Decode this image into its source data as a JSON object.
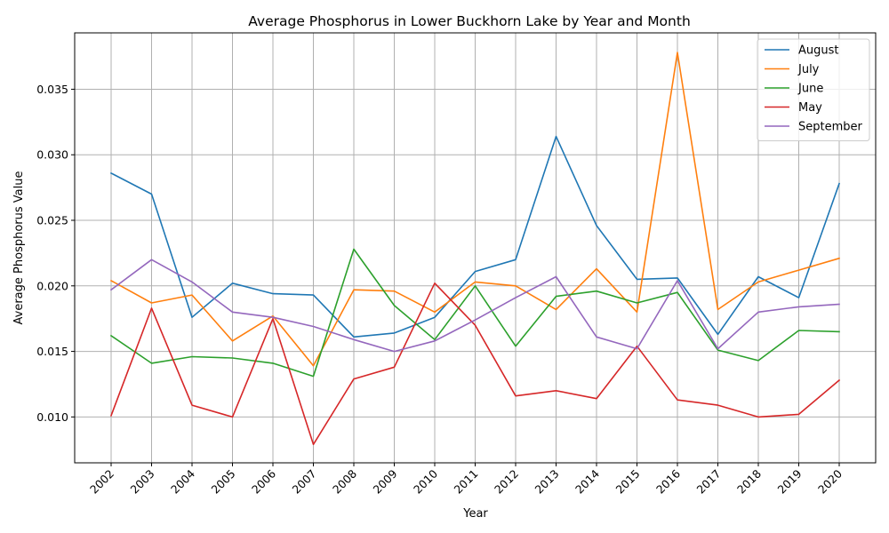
{
  "chart_data": {
    "type": "line",
    "title": "Average Phosphorus in Lower Buckhorn Lake by Year and Month",
    "xlabel": "Year",
    "ylabel": "Average Phosphorus Value",
    "x": [
      "2002",
      "2003",
      "2004",
      "2005",
      "2006",
      "2007",
      "2008",
      "2009",
      "2010",
      "2011",
      "2012",
      "2013",
      "2014",
      "2015",
      "2016",
      "2017",
      "2018",
      "2019",
      "2020"
    ],
    "ylim": [
      0.0065,
      0.0393
    ],
    "yticks": [
      0.01,
      0.015,
      0.02,
      0.025,
      0.03,
      0.035
    ],
    "ytick_labels": [
      "0.010",
      "0.015",
      "0.020",
      "0.025",
      "0.030",
      "0.035"
    ],
    "grid": true,
    "legend_position": "top-right",
    "series": [
      {
        "name": "August",
        "color": "#1f77b4",
        "values": [
          0.0286,
          0.027,
          0.0176,
          0.0202,
          0.0194,
          0.0193,
          0.0161,
          0.0164,
          0.0176,
          0.0211,
          0.022,
          0.0314,
          0.0246,
          0.0205,
          0.0206,
          0.0163,
          0.0207,
          0.0191,
          0.0278
        ]
      },
      {
        "name": "July",
        "color": "#ff7f0e",
        "values": [
          0.0204,
          0.0187,
          0.0193,
          0.0158,
          0.0177,
          0.0139,
          0.0197,
          0.0196,
          0.018,
          0.0203,
          0.02,
          0.0182,
          0.0213,
          0.018,
          0.0378,
          0.0182,
          0.0203,
          0.0212,
          0.0221
        ]
      },
      {
        "name": "June",
        "color": "#2ca02c",
        "values": [
          0.0162,
          0.0141,
          0.0146,
          0.0145,
          0.0141,
          0.0131,
          0.0228,
          0.0185,
          0.0159,
          0.02,
          0.0154,
          0.0192,
          0.0196,
          0.0187,
          0.0195,
          0.0151,
          0.0143,
          0.0166,
          0.0165
        ]
      },
      {
        "name": "May",
        "color": "#d62728",
        "values": [
          0.0101,
          0.0183,
          0.0109,
          0.01,
          0.0175,
          0.0079,
          0.0129,
          0.0138,
          0.0202,
          0.017,
          0.0116,
          0.012,
          0.0114,
          0.0154,
          0.0113,
          0.0109,
          0.01,
          0.0102,
          0.0128
        ]
      },
      {
        "name": "September",
        "color": "#9467bd",
        "values": [
          0.0197,
          0.022,
          0.0203,
          0.018,
          0.0176,
          0.0169,
          0.0159,
          0.015,
          0.0158,
          0.0174,
          0.0191,
          0.0207,
          0.0161,
          0.0152,
          0.0204,
          0.0152,
          0.018,
          0.0184,
          0.0186
        ]
      }
    ]
  }
}
